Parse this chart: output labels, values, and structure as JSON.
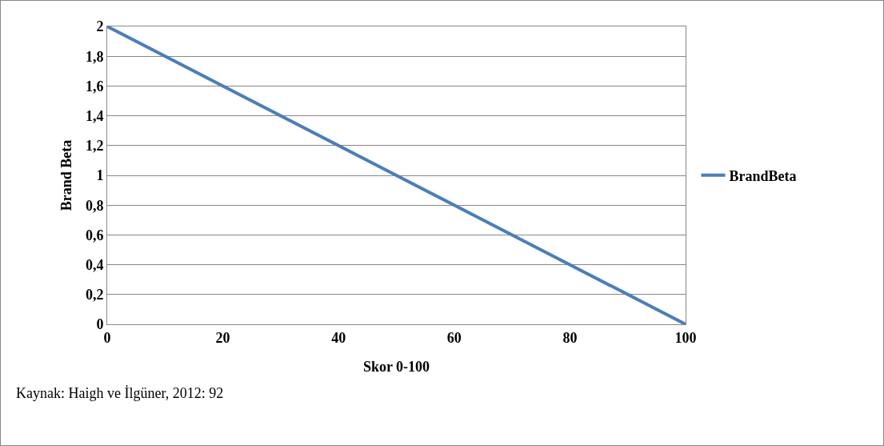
{
  "chart_data": {
    "type": "line",
    "xlabel": "Skor 0-100",
    "ylabel": "Brand Beta",
    "annotations": [
      "Kaynak: Haigh ve İlgüner, 2012: 92"
    ],
    "x": [
      0,
      100
    ],
    "series": [
      {
        "name": "BrandBeta",
        "color": "#4a7ebb",
        "values": [
          2,
          0
        ]
      }
    ],
    "xlim": [
      0,
      100
    ],
    "xticks": [
      0,
      20,
      40,
      60,
      80,
      100
    ],
    "ylim": [
      0,
      2
    ],
    "yticks": [
      0,
      {
        "value": 0.2,
        "label": "0,2"
      },
      {
        "value": 0.4,
        "label": "0,4"
      },
      {
        "value": 0.6,
        "label": "0,6"
      },
      {
        "value": 0.8,
        "label": "0,8"
      },
      1,
      {
        "value": 1.2,
        "label": "1,2"
      },
      {
        "value": 1.4,
        "label": "1,4"
      },
      {
        "value": 1.6,
        "label": "1,6"
      },
      {
        "value": 1.8,
        "label": "1,8"
      },
      2
    ],
    "grid": "y",
    "legend": "right",
    "marker": "none",
    "line_style": "solid"
  }
}
